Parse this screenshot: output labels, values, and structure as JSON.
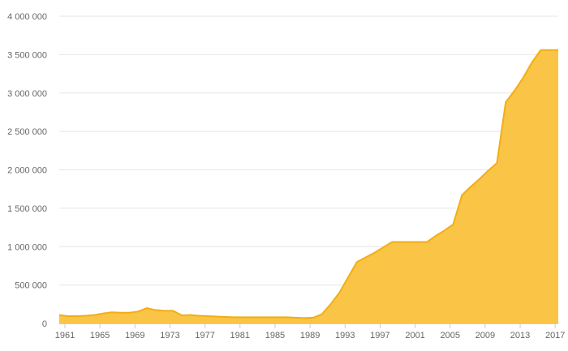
{
  "chart_data": {
    "type": "area",
    "title": "",
    "xlabel": "",
    "ylabel": "",
    "x": [
      1961,
      1962,
      1963,
      1964,
      1965,
      1966,
      1967,
      1968,
      1969,
      1970,
      1971,
      1972,
      1973,
      1974,
      1975,
      1976,
      1977,
      1978,
      1979,
      1980,
      1981,
      1982,
      1983,
      1984,
      1985,
      1986,
      1987,
      1988,
      1989,
      1990,
      1991,
      1992,
      1993,
      1994,
      1995,
      1996,
      1997,
      1998,
      1999,
      2000,
      2001,
      2002,
      2003,
      2004,
      2005,
      2006,
      2007,
      2008,
      2009,
      2010,
      2011,
      2012,
      2013,
      2014,
      2015,
      2016,
      2017,
      2018
    ],
    "series": [
      {
        "values": [
          110000,
          95000,
          95000,
          100000,
          110000,
          130000,
          145000,
          140000,
          140000,
          155000,
          200000,
          175000,
          165000,
          165000,
          105000,
          110000,
          100000,
          95000,
          90000,
          85000,
          80000,
          80000,
          80000,
          80000,
          80000,
          80000,
          80000,
          75000,
          70000,
          75000,
          120000,
          250000,
          400000,
          600000,
          800000,
          860000,
          920000,
          990000,
          1060000,
          1060000,
          1060000,
          1060000,
          1060000,
          1140000,
          1210000,
          1290000,
          1670000,
          1780000,
          1880000,
          1990000,
          2090000,
          2880000,
          3030000,
          3200000,
          3400000,
          3560000,
          3560000,
          3560000
        ]
      }
    ],
    "xticks": [
      "1961",
      "1965",
      "1969",
      "1973",
      "1977",
      "1981",
      "1985",
      "1989",
      "1993",
      "1997",
      "2001",
      "2005",
      "2009",
      "2013",
      "2017"
    ],
    "yticks": [
      "0",
      "500 000",
      "1 000 000",
      "1 500 000",
      "2 000 000",
      "2 500 000",
      "3 000 000",
      "3 500 000",
      "4 000 000"
    ],
    "ylim": [
      0,
      4000000
    ],
    "grid": true,
    "legend": "none",
    "fill_color": "#fac13c",
    "line_color": "#f2ae13"
  }
}
